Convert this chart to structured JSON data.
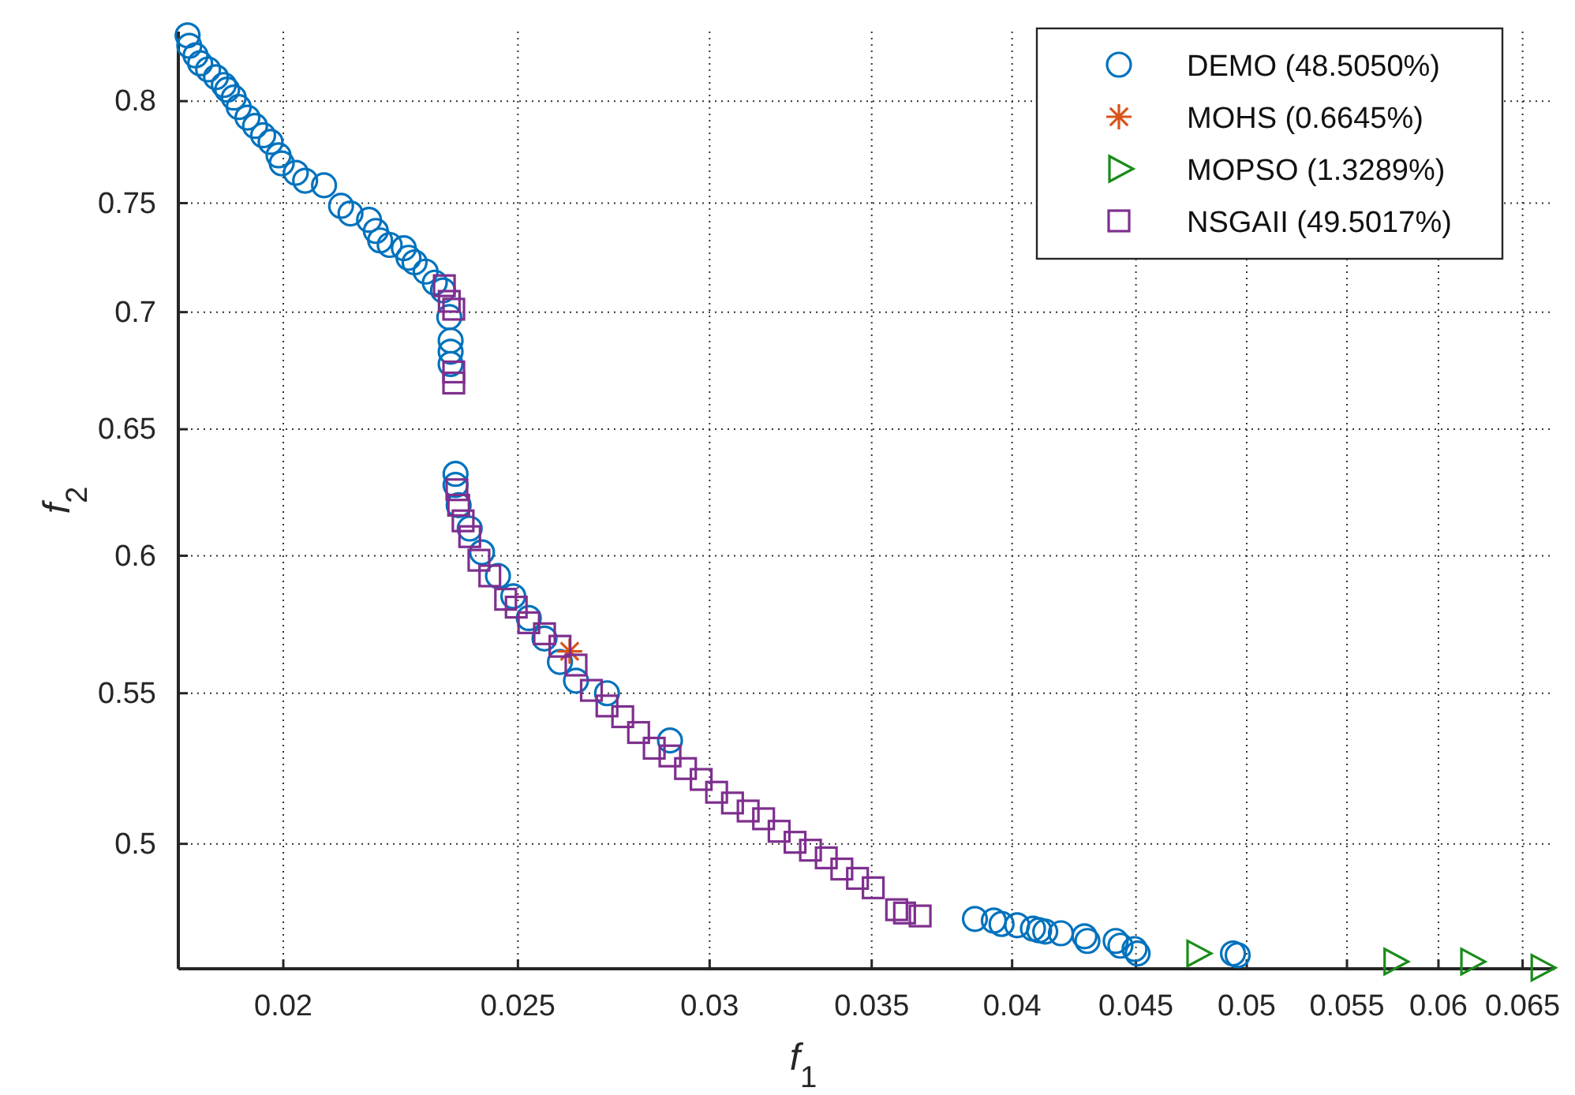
{
  "chart_data": {
    "type": "scatter",
    "xlabel": "f$_{1}$",
    "ylabel": "f$_{2}$",
    "log": "xy",
    "grid": true,
    "legend": "top right",
    "xlim": [
      0.0181,
      0.067
    ],
    "ylim": [
      0.462,
      0.836
    ],
    "xticks": [
      0.02,
      0.025,
      0.03,
      0.035,
      0.04,
      0.045,
      0.05,
      0.055,
      0.06,
      0.065
    ],
    "yticks": [
      0.5,
      0.55,
      0.6,
      0.65,
      0.7,
      0.75,
      0.8
    ],
    "series": [
      {
        "name": "DEMO (48.5050%)",
        "color": "#0072bd",
        "marker": "circle",
        "x": [
          0.01826,
          0.01829,
          0.0184,
          0.01848,
          0.01862,
          0.01876,
          0.0189,
          0.01896,
          0.01908,
          0.01917,
          0.01933,
          0.01947,
          0.01962,
          0.01976,
          0.01991,
          0.01997,
          0.02024,
          0.02042,
          0.02079,
          0.02113,
          0.02132,
          0.0217,
          0.02184,
          0.02193,
          0.02213,
          0.02243,
          0.02253,
          0.02266,
          0.0229,
          0.0231,
          0.02328,
          0.02342,
          0.02345,
          0.02345,
          0.02345,
          0.02356,
          0.02356,
          0.02363,
          0.02388,
          0.02416,
          0.02453,
          0.02489,
          0.02526,
          0.02564,
          0.02602,
          0.02642,
          0.02721,
          0.02889,
          0.03861,
          0.03931,
          0.0396,
          0.04019,
          0.0408,
          0.04104,
          0.04128,
          0.0419,
          0.04285,
          0.04297,
          0.04414,
          0.04434,
          0.04494,
          0.04507,
          0.04935,
          0.04957
        ],
        "values": [
          0.834,
          0.8285,
          0.8235,
          0.8194,
          0.8162,
          0.8122,
          0.8082,
          0.8058,
          0.8018,
          0.797,
          0.7917,
          0.7875,
          0.7829,
          0.7796,
          0.773,
          0.7691,
          0.7645,
          0.7607,
          0.7585,
          0.7487,
          0.7451,
          0.7421,
          0.7369,
          0.7325,
          0.7304,
          0.7289,
          0.7245,
          0.7224,
          0.7182,
          0.7132,
          0.7097,
          0.6978,
          0.6875,
          0.6827,
          0.6774,
          0.6319,
          0.6275,
          0.6195,
          0.6104,
          0.6013,
          0.5924,
          0.5848,
          0.5768,
          0.5694,
          0.561,
          0.5544,
          0.55,
          0.5338,
          0.4768,
          0.4763,
          0.4753,
          0.4749,
          0.4739,
          0.4734,
          0.473,
          0.4725,
          0.4716,
          0.4702,
          0.4702,
          0.4688,
          0.4678,
          0.4665,
          0.4665,
          0.466
        ]
      },
      {
        "name": "MOHS (0.6645%)",
        "color": "#d95319",
        "marker": "cross",
        "x": [
          0.02626
        ],
        "values": [
          0.5648
        ]
      },
      {
        "name": "MOPSO (1.3289%)",
        "color": "#1a8c1a",
        "marker": "triangle",
        "x": [
          0.04769,
          0.05752,
          0.06188,
          0.06616
        ],
        "values": [
          0.4665,
          0.4641,
          0.4641,
          0.4623
        ]
      },
      {
        "name": "NSGAII (49.5017%)",
        "color": "#7e2f8e",
        "marker": "square",
        "x": [
          0.02331,
          0.02342,
          0.02352,
          0.02352,
          0.02352,
          0.02359,
          0.02363,
          0.02373,
          0.02388,
          0.02409,
          0.02434,
          0.02471,
          0.02496,
          0.02526,
          0.02564,
          0.02602,
          0.02642,
          0.02681,
          0.02721,
          0.02762,
          0.02804,
          0.02846,
          0.02889,
          0.02932,
          0.02976,
          0.0302,
          0.03066,
          0.03112,
          0.03158,
          0.03205,
          0.03254,
          0.03302,
          0.03352,
          0.03402,
          0.03453,
          0.03505,
          0.03584,
          0.03611,
          0.03665
        ],
        "values": [
          0.7118,
          0.7048,
          0.7013,
          0.674,
          0.6693,
          0.6256,
          0.6195,
          0.6134,
          0.6073,
          0.5983,
          0.5924,
          0.5837,
          0.5808,
          0.5751,
          0.5711,
          0.5666,
          0.5599,
          0.551,
          0.5456,
          0.5419,
          0.5365,
          0.5312,
          0.5286,
          0.5244,
          0.5208,
          0.5166,
          0.5131,
          0.5105,
          0.508,
          0.504,
          0.5005,
          0.498,
          0.4956,
          0.4921,
          0.4892,
          0.4863,
          0.4796,
          0.4786,
          0.4777
        ]
      }
    ]
  }
}
